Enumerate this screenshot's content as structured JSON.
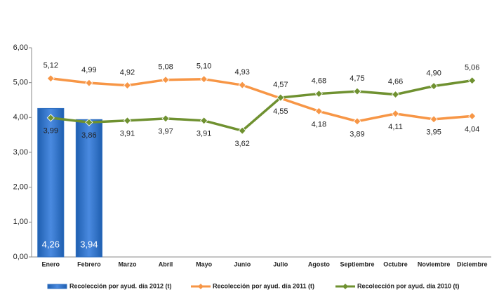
{
  "chart_data": {
    "type": "bar",
    "categories": [
      "Enero",
      "Febrero",
      "Marzo",
      "Abril",
      "Mayo",
      "Junio",
      "Julio",
      "Agosto",
      "Septiembre",
      "Octubre",
      "Noviembre",
      "Diciembre"
    ],
    "series": [
      {
        "name": "Recolección por ayud. día 2012 (t)",
        "type": "bar",
        "color": "#2f6fc0",
        "values": [
          4.26,
          3.94,
          null,
          null,
          null,
          null,
          null,
          null,
          null,
          null,
          null,
          null
        ],
        "value_labels": [
          "4,26",
          "3,94",
          null,
          null,
          null,
          null,
          null,
          null,
          null,
          null,
          null,
          null
        ]
      },
      {
        "name": "Recolección por ayud. día 2011 (t)",
        "type": "line",
        "color": "#f79646",
        "values": [
          5.12,
          4.99,
          4.92,
          5.08,
          5.1,
          4.93,
          4.55,
          4.18,
          3.89,
          4.11,
          3.95,
          4.04
        ],
        "value_labels": [
          "5,12",
          "4,99",
          "4,92",
          "5,08",
          "5,10",
          "4,93",
          "4,55",
          "4,18",
          "3,89",
          "4,11",
          "3,95",
          "4,04"
        ]
      },
      {
        "name": "Recolección por ayud. día 2010 (t)",
        "type": "line",
        "color": "#6f9130",
        "values": [
          3.99,
          3.86,
          3.91,
          3.97,
          3.91,
          3.62,
          4.57,
          4.68,
          4.75,
          4.66,
          4.9,
          5.06
        ],
        "value_labels": [
          "3,99",
          "3,86",
          "3,91",
          "3,97",
          "3,91",
          "3,62",
          "4,57",
          "4,68",
          "4,75",
          "4,66",
          "4,90",
          "5,06"
        ]
      }
    ],
    "ylim": [
      0,
      6
    ],
    "yticks": [
      {
        "value": 0,
        "label": "0,00"
      },
      {
        "value": 1,
        "label": "1,00"
      },
      {
        "value": 2,
        "label": "2,00"
      },
      {
        "value": 3,
        "label": "3,00"
      },
      {
        "value": 4,
        "label": "4,00"
      },
      {
        "value": 5,
        "label": "5,00"
      },
      {
        "value": 6,
        "label": "6,00"
      }
    ],
    "grid": false,
    "legend": "bottom"
  }
}
